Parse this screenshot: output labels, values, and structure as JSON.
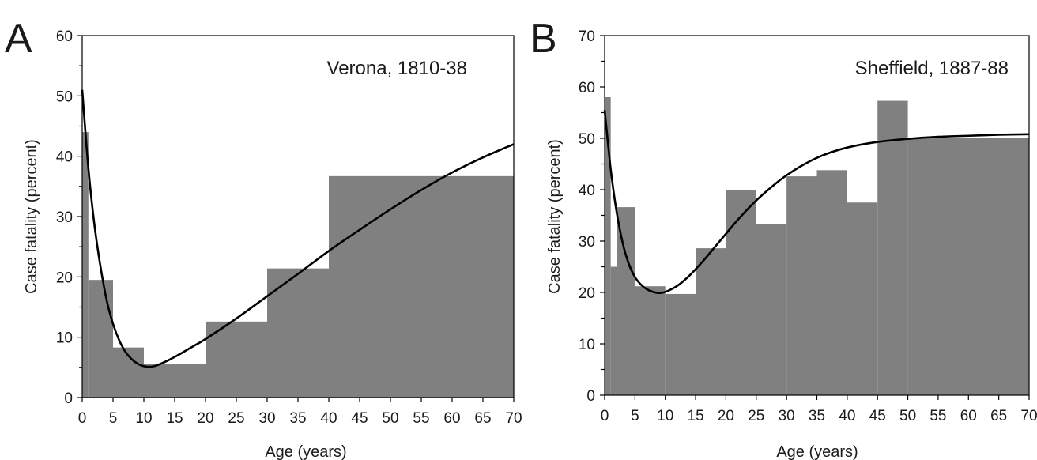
{
  "chart_data": [
    {
      "type": "bar",
      "panel_label": "A",
      "annotation": "Verona, 1810-38",
      "xlabel": "Age (years)",
      "ylabel": "Case fatality (percent)",
      "xlim": [
        0,
        70
      ],
      "ylim": [
        0,
        60
      ],
      "xticks": [
        "0",
        "5",
        "10",
        "15",
        "20",
        "25",
        "30",
        "35",
        "40",
        "45",
        "50",
        "55",
        "60",
        "65",
        "70"
      ],
      "yticks": [
        "0",
        "10",
        "20",
        "30",
        "40",
        "50",
        "60"
      ],
      "grid": false,
      "colors": {
        "bars": "#808080",
        "curve": "#000000"
      },
      "bars": [
        {
          "x0": 0,
          "x1": 1,
          "value": 44
        },
        {
          "x0": 1,
          "x1": 5,
          "value": 19.5
        },
        {
          "x0": 5,
          "x1": 10,
          "value": 8.3
        },
        {
          "x0": 10,
          "x1": 20,
          "value": 5.5
        },
        {
          "x0": 20,
          "x1": 30,
          "value": 12.6
        },
        {
          "x0": 30,
          "x1": 40,
          "value": 21.4
        },
        {
          "x0": 40,
          "x1": 70,
          "value": 36.7
        }
      ],
      "fitted_curve": {
        "x": [
          0,
          1,
          2,
          3,
          4,
          5,
          6,
          7,
          8,
          9,
          10,
          11,
          12,
          14,
          16,
          18,
          20,
          25,
          30,
          35,
          40,
          45,
          50,
          55,
          60,
          65,
          70
        ],
        "y": [
          51,
          38,
          28.5,
          21.5,
          16,
          12.2,
          9.5,
          7.6,
          6.4,
          5.6,
          5.2,
          5.1,
          5.3,
          6.2,
          7.3,
          8.5,
          9.7,
          13.1,
          16.8,
          20.5,
          24.3,
          27.8,
          31.2,
          34.4,
          37.3,
          39.8,
          42
        ]
      }
    },
    {
      "type": "bar",
      "panel_label": "B",
      "annotation": "Sheffield, 1887-88",
      "xlabel": "Age (years)",
      "ylabel": "Case fatality (percent)",
      "xlim": [
        0,
        70
      ],
      "ylim": [
        0,
        70
      ],
      "xticks": [
        "0",
        "5",
        "10",
        "15",
        "20",
        "25",
        "30",
        "35",
        "40",
        "45",
        "50",
        "55",
        "60",
        "65",
        "70"
      ],
      "yticks": [
        "0",
        "10",
        "20",
        "30",
        "40",
        "50",
        "60",
        "70"
      ],
      "grid": false,
      "colors": {
        "bars": "#808080",
        "curve": "#000000"
      },
      "bars": [
        {
          "x0": 0,
          "x1": 1,
          "value": 58
        },
        {
          "x0": 1,
          "x1": 2,
          "value": 25
        },
        {
          "x0": 2,
          "x1": 5,
          "value": 36.6
        },
        {
          "x0": 5,
          "x1": 7,
          "value": 21.2
        },
        {
          "x0": 7,
          "x1": 10,
          "value": 21.2
        },
        {
          "x0": 10,
          "x1": 15,
          "value": 19.7
        },
        {
          "x0": 15,
          "x1": 20,
          "value": 28.6
        },
        {
          "x0": 20,
          "x1": 25,
          "value": 40
        },
        {
          "x0": 25,
          "x1": 30,
          "value": 33.3
        },
        {
          "x0": 30,
          "x1": 35,
          "value": 42.6
        },
        {
          "x0": 35,
          "x1": 40,
          "value": 43.8
        },
        {
          "x0": 40,
          "x1": 45,
          "value": 37.5
        },
        {
          "x0": 45,
          "x1": 50,
          "value": 57.3
        },
        {
          "x0": 50,
          "x1": 70,
          "value": 50
        }
      ],
      "fitted_curve": {
        "x": [
          0,
          1,
          2,
          3,
          4,
          5,
          6,
          7,
          8,
          9,
          10,
          12,
          14,
          16,
          18,
          20,
          22,
          25,
          28,
          30,
          33,
          36,
          40,
          45,
          50,
          55,
          60,
          65,
          70
        ],
        "y": [
          55.5,
          44,
          35.5,
          29.5,
          25.5,
          23,
          21.5,
          20.6,
          20.1,
          19.9,
          20.1,
          21.3,
          23.3,
          25.8,
          28.6,
          31.4,
          34.2,
          37.9,
          41,
          42.8,
          45,
          46.7,
          48.2,
          49.3,
          49.9,
          50.3,
          50.5,
          50.7,
          50.8
        ]
      }
    }
  ]
}
